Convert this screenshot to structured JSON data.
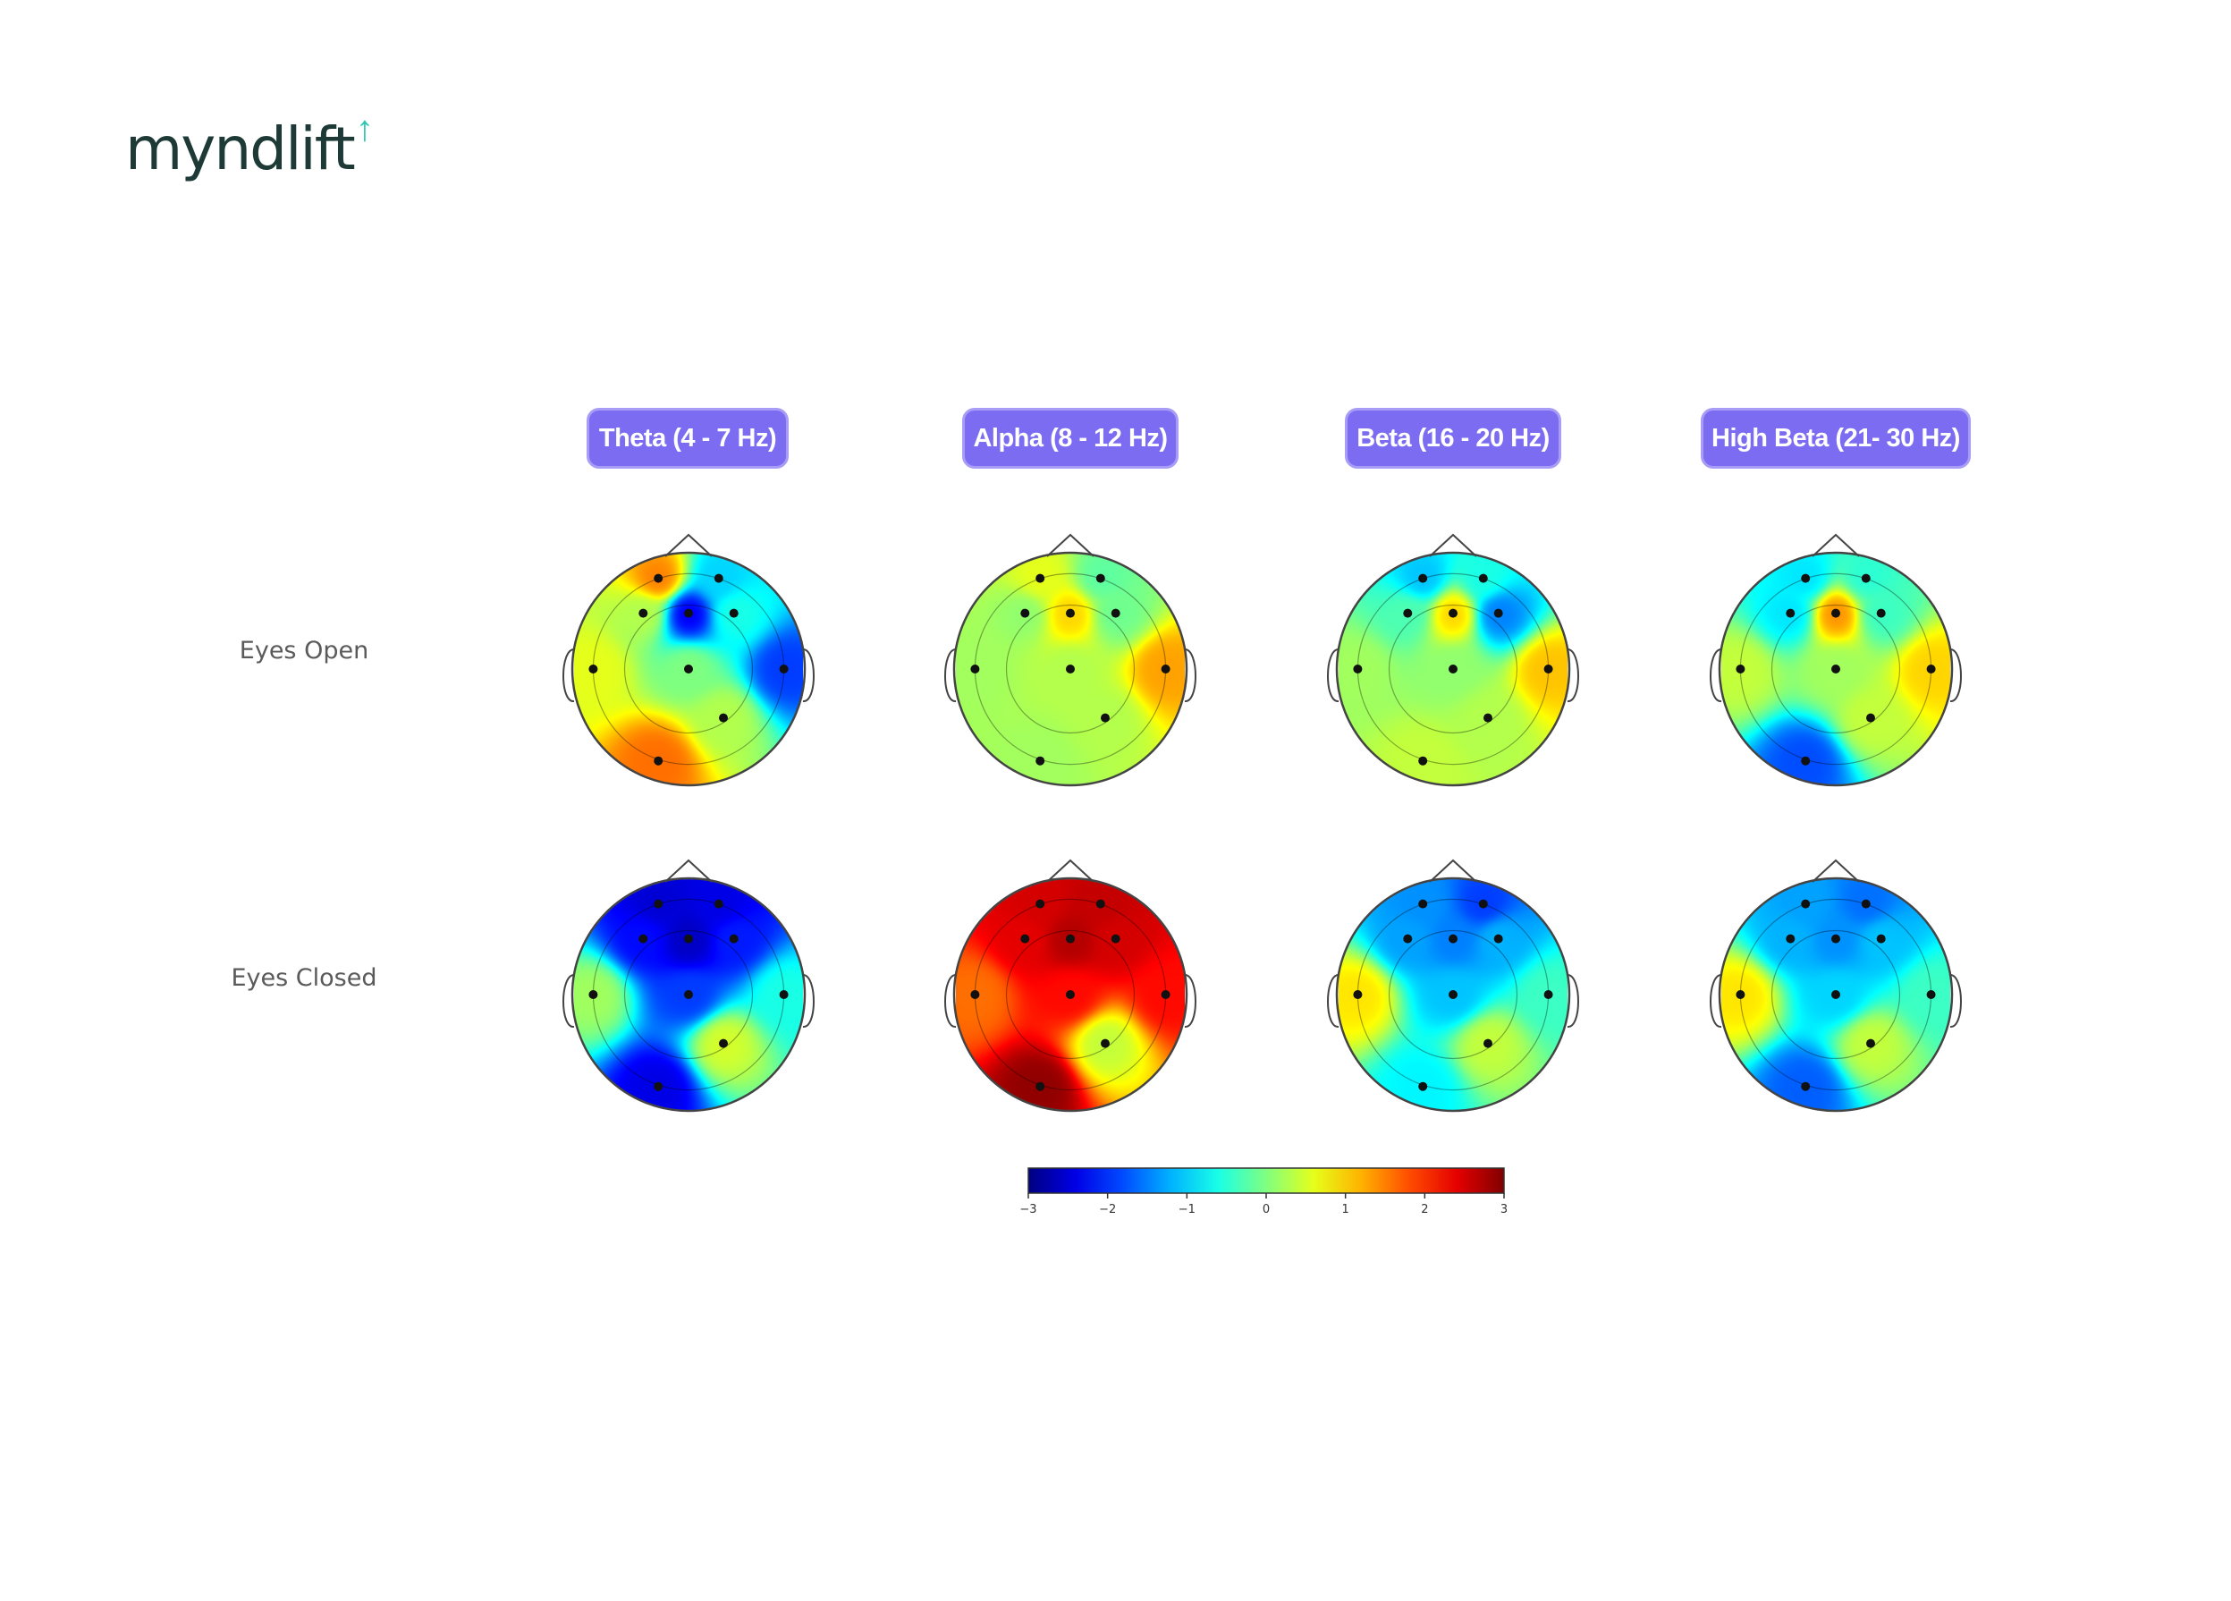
{
  "logo": {
    "text": "myndlift",
    "arrow_icon": "up-arrow-icon",
    "accent_color": "#2fc6b3"
  },
  "bands": [
    {
      "label": "Theta (4 - 7 Hz)"
    },
    {
      "label": "Alpha (8 - 12 Hz)"
    },
    {
      "label": "Beta (16 - 20 Hz)"
    },
    {
      "label": "High Beta (21- 30 Hz)"
    }
  ],
  "rows": [
    {
      "label": "Eyes Open"
    },
    {
      "label": "Eyes Closed"
    }
  ],
  "chart_data": {
    "type": "heatmap",
    "colormap": "jet",
    "colorbar": {
      "min": -3,
      "max": 3,
      "ticks": [
        "−3",
        "−2",
        "−1",
        "0",
        "1",
        "2",
        "3"
      ]
    },
    "electrode_marker_color": "#111111",
    "maps": [
      {
        "row": "Eyes Open",
        "band": "Theta (4 - 7 Hz)",
        "values": {
          "F3": 1.5,
          "F4": -1.0,
          "Fz": -2.3,
          "C3": 0.3,
          "C4": -0.6,
          "T3": 0.6,
          "Cz": 0.0,
          "T4": -1.9,
          "O1": 1.6,
          "O2": 0.3
        }
      },
      {
        "row": "Eyes Open",
        "band": "Alpha (8 - 12 Hz)",
        "values": {
          "F3": 0.6,
          "F4": -0.2,
          "Fz": 1.0,
          "C3": 0.1,
          "C4": -0.1,
          "T3": 0.2,
          "Cz": 0.3,
          "T4": 1.3,
          "O1": 0.2,
          "O2": 0.3
        }
      },
      {
        "row": "Eyes Open",
        "band": "Beta (16 - 20 Hz)",
        "values": {
          "F3": -1.1,
          "F4": -0.6,
          "Fz": 1.0,
          "C3": -0.3,
          "C4": -1.5,
          "T3": 0.2,
          "Cz": 0.1,
          "T4": 1.1,
          "O1": 0.4,
          "O2": 0.3
        }
      },
      {
        "row": "Eyes Open",
        "band": "High Beta (21- 30 Hz)",
        "values": {
          "F3": -0.9,
          "F4": -0.5,
          "Fz": 1.4,
          "C3": -0.9,
          "C4": -0.4,
          "T3": 0.4,
          "Cz": 0.2,
          "T4": 1.0,
          "O1": -1.8,
          "O2": 0.4
        }
      },
      {
        "row": "Eyes Closed",
        "band": "Theta (4 - 7 Hz)",
        "values": {
          "F3": -2.5,
          "F4": -2.4,
          "Fz": -2.6,
          "C3": -2.2,
          "C4": -2.1,
          "T3": 0.2,
          "Cz": -1.9,
          "T4": -0.6,
          "O1": -2.4,
          "O2": 0.5
        }
      },
      {
        "row": "Eyes Closed",
        "band": "Alpha (8 - 12 Hz)",
        "values": {
          "F3": 2.5,
          "F4": 2.6,
          "Fz": 2.7,
          "C3": 2.4,
          "C4": 2.5,
          "T3": 1.6,
          "Cz": 2.2,
          "T4": 2.2,
          "O1": 2.9,
          "O2": 0.4
        }
      },
      {
        "row": "Eyes Closed",
        "band": "Beta (16 - 20 Hz)",
        "values": {
          "F3": -1.4,
          "F4": -1.9,
          "Fz": -1.5,
          "C3": -1.3,
          "C4": -1.2,
          "T3": 0.9,
          "Cz": -1.1,
          "T4": -0.4,
          "O1": -0.8,
          "O2": 0.4
        }
      },
      {
        "row": "Eyes Closed",
        "band": "High Beta (21- 30 Hz)",
        "values": {
          "F3": -1.3,
          "F4": -1.6,
          "Fz": -1.4,
          "C3": -1.2,
          "C4": -1.1,
          "T3": 0.9,
          "Cz": -1.0,
          "T4": -0.4,
          "O1": -1.7,
          "O2": 0.4
        }
      }
    ]
  }
}
